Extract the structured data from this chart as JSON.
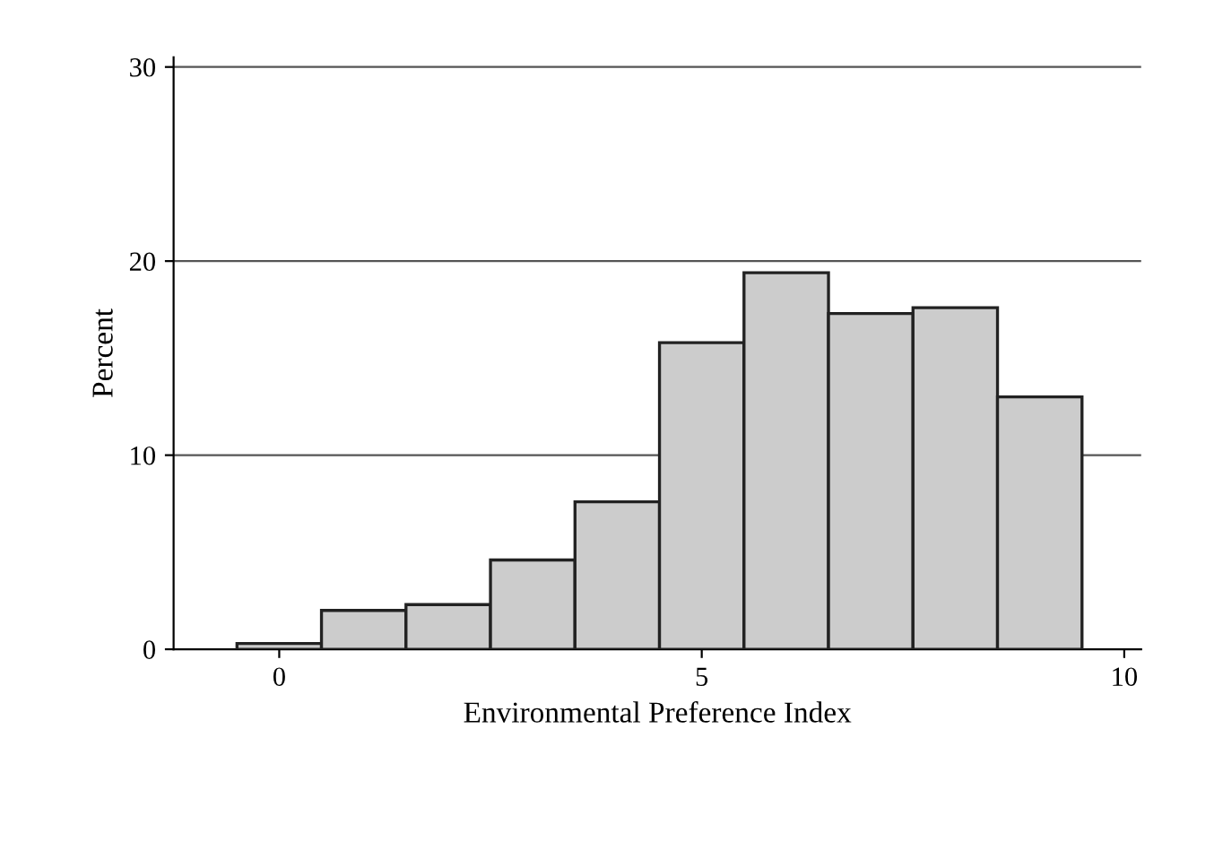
{
  "chart_data": {
    "type": "histogram",
    "xlabel": "Environmental Preference Index",
    "ylabel": "Percent",
    "bins": [
      -0.5,
      0.5,
      1.5,
      2.5,
      3.5,
      4.5,
      5.5,
      6.5,
      7.5,
      8.5,
      9.5
    ],
    "values": [
      0.3,
      2.0,
      2.3,
      4.6,
      7.6,
      15.8,
      19.4,
      17.3,
      17.6,
      13.0
    ],
    "color": "#cccccc",
    "xlim": [
      -1.25,
      10.2
    ],
    "xticks": [
      0,
      5,
      10
    ],
    "ylim": [
      0,
      30.5
    ],
    "yticks": [
      0,
      10,
      20,
      30
    ],
    "grid": "y"
  }
}
